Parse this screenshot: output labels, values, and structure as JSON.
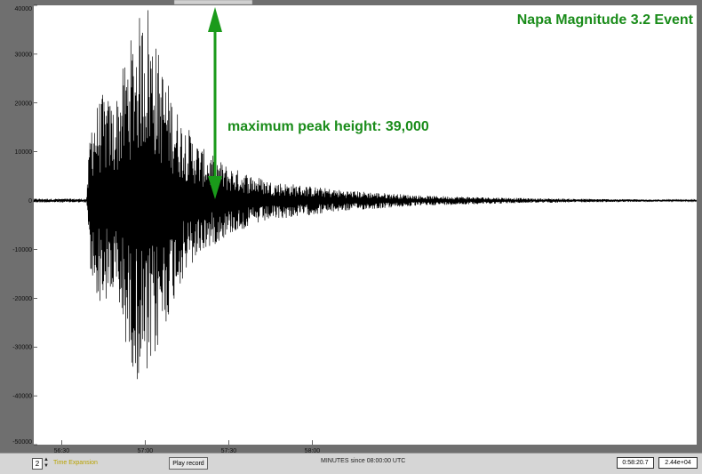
{
  "chart_data": {
    "type": "line",
    "title": "Napa Magnitude 3.2 Event",
    "annotation": "maximum peak height: 39,000",
    "xlabel": "MINUTES since 08:00:00 UTC",
    "ylabel": "",
    "x_ticks": [
      "56:30",
      "57:00",
      "57:30",
      "58:00"
    ],
    "y_ticks": [
      "40000",
      "30000",
      "20000",
      "10000",
      "0",
      "-10000",
      "-20000",
      "-30000",
      "-40000",
      "-50000"
    ],
    "ylim": [
      -50000,
      40000
    ],
    "xlim_seconds": [
      3380,
      3618
    ],
    "peak_height": 39000,
    "envelope": [
      {
        "t": 3380,
        "a": 400
      },
      {
        "t": 3399,
        "a": 400
      },
      {
        "t": 3400.5,
        "a": 18000
      },
      {
        "t": 3405,
        "a": 22000
      },
      {
        "t": 3409,
        "a": 20000
      },
      {
        "t": 3414,
        "a": 32000
      },
      {
        "t": 3418,
        "a": 38000
      },
      {
        "t": 3421,
        "a": 39000
      },
      {
        "t": 3426,
        "a": 28000
      },
      {
        "t": 3432,
        "a": 18000
      },
      {
        "t": 3440,
        "a": 11000
      },
      {
        "t": 3450,
        "a": 7000
      },
      {
        "t": 3465,
        "a": 4000
      },
      {
        "t": 3490,
        "a": 2200
      },
      {
        "t": 3520,
        "a": 1000
      },
      {
        "t": 3560,
        "a": 450
      },
      {
        "t": 3618,
        "a": 150
      }
    ],
    "grid": false,
    "line_color": "#000000",
    "annotation_color": "#1a8c1a"
  },
  "controls": {
    "time_expansion_value": "2",
    "time_expansion_label": "Time Expansion",
    "play_button_label": "Play record",
    "time_readout": "0:58:20.7",
    "amplitude_readout": "2.44e+04"
  }
}
